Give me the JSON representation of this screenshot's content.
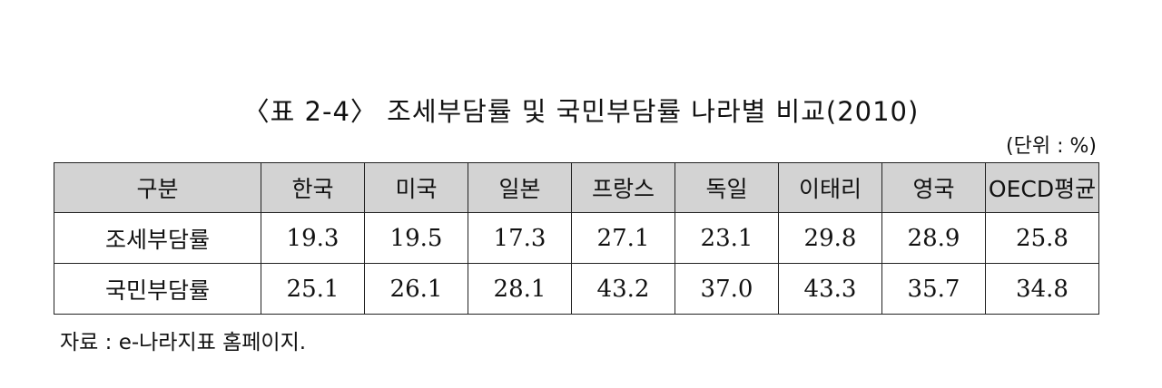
{
  "title": "〈표 2-4〉 조세부담률 및 국민부담률 나라별 비교(2010)",
  "unit_note": "(단위 : %)",
  "table": {
    "headers": [
      "구분",
      "한국",
      "미국",
      "일본",
      "프랑스",
      "독일",
      "이태리",
      "영국",
      "OECD평균"
    ],
    "rows": [
      {
        "label": "조세부담률",
        "values": [
          "19.3",
          "19.5",
          "17.3",
          "27.1",
          "23.1",
          "29.8",
          "28.9",
          "25.8"
        ]
      },
      {
        "label": "국민부담률",
        "values": [
          "25.1",
          "26.1",
          "28.1",
          "43.2",
          "37.0",
          "43.3",
          "35.7",
          "34.8"
        ]
      }
    ]
  },
  "source": "자료 : e-나라지표 홈페이지."
}
